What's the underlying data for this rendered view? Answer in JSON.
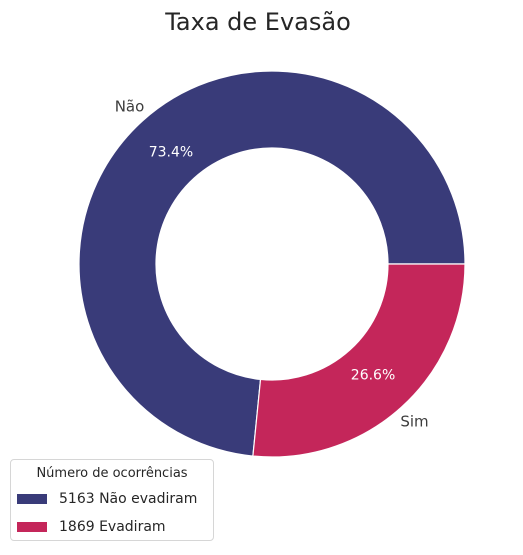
{
  "chart_data": {
    "type": "pie",
    "variant": "donut",
    "title": "Taxa de Evasão",
    "slices": [
      {
        "label": "Não",
        "value": 5163,
        "percent_label": "73.4%",
        "color": "#393b79"
      },
      {
        "label": "Sim",
        "value": 1869,
        "percent_label": "26.6%",
        "color": "#c4265a"
      }
    ],
    "legend": {
      "title": "Número de ocorrências",
      "placement": "bottom-left",
      "entries": [
        {
          "text": "5163 Não evadiram",
          "color": "#393b79"
        },
        {
          "text": "1869 Evadiram",
          "color": "#c4265a"
        }
      ]
    }
  }
}
